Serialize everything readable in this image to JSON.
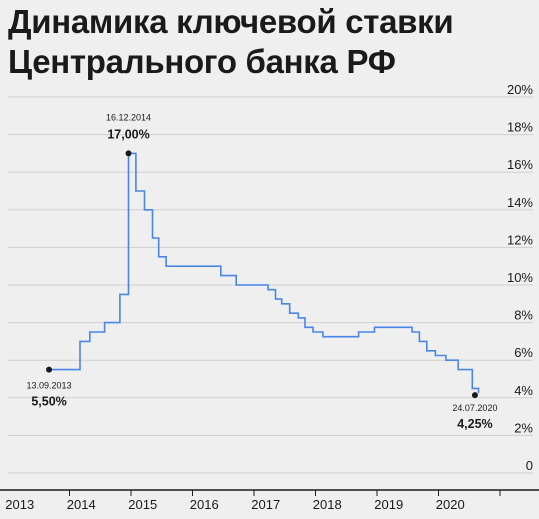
{
  "chart_data": {
    "type": "line",
    "title": "Динамика ключевой ставки Центрального банка РФ",
    "y_tick_labels": [
      "0",
      "2%",
      "4%",
      "6%",
      "8%",
      "10%",
      "12%",
      "14%",
      "16%",
      "18%",
      "20%"
    ],
    "ylim": [
      0,
      20
    ],
    "x_tick_labels": [
      "2013",
      "2014",
      "2015",
      "2016",
      "2017",
      "2018",
      "2019",
      "2020"
    ],
    "xlim": [
      2013.0,
      2021.0
    ],
    "grid": true,
    "line_color": "#4a86e8",
    "series": [
      {
        "x": [
          2013.7,
          2014.17,
          2014.33,
          2014.57,
          2014.82,
          2014.96,
          2014.97,
          2015.08,
          2015.22,
          2015.35,
          2015.45,
          2015.57,
          2016.46,
          2016.71,
          2017.23,
          2017.35,
          2017.45,
          2017.58,
          2017.72,
          2017.83,
          2017.96,
          2018.12,
          2018.25,
          2018.7,
          2018.96,
          2019.46,
          2019.57,
          2019.69,
          2019.81,
          2019.95,
          2020.12,
          2020.32,
          2020.55,
          2020.65
        ],
        "y": [
          5.5,
          7.0,
          7.5,
          8.0,
          9.5,
          17.0,
          17.0,
          15.0,
          14.0,
          12.5,
          11.5,
          11.0,
          10.5,
          10.0,
          9.75,
          9.25,
          9.0,
          8.5,
          8.25,
          7.75,
          7.5,
          7.25,
          7.25,
          7.5,
          7.75,
          7.75,
          7.5,
          7.0,
          6.5,
          6.25,
          6.0,
          5.5,
          4.5,
          4.25
        ]
      }
    ],
    "annotations": [
      {
        "date": "13.09.2013",
        "value": "5,50%",
        "x": 2013.7,
        "y": 5.5
      },
      {
        "date": "16.12.2014",
        "value": "17,00%",
        "x": 2014.96,
        "y": 17.0
      },
      {
        "date": "24.07.2020",
        "value": "4,25%",
        "x": 2020.56,
        "y": 4.25
      }
    ]
  }
}
